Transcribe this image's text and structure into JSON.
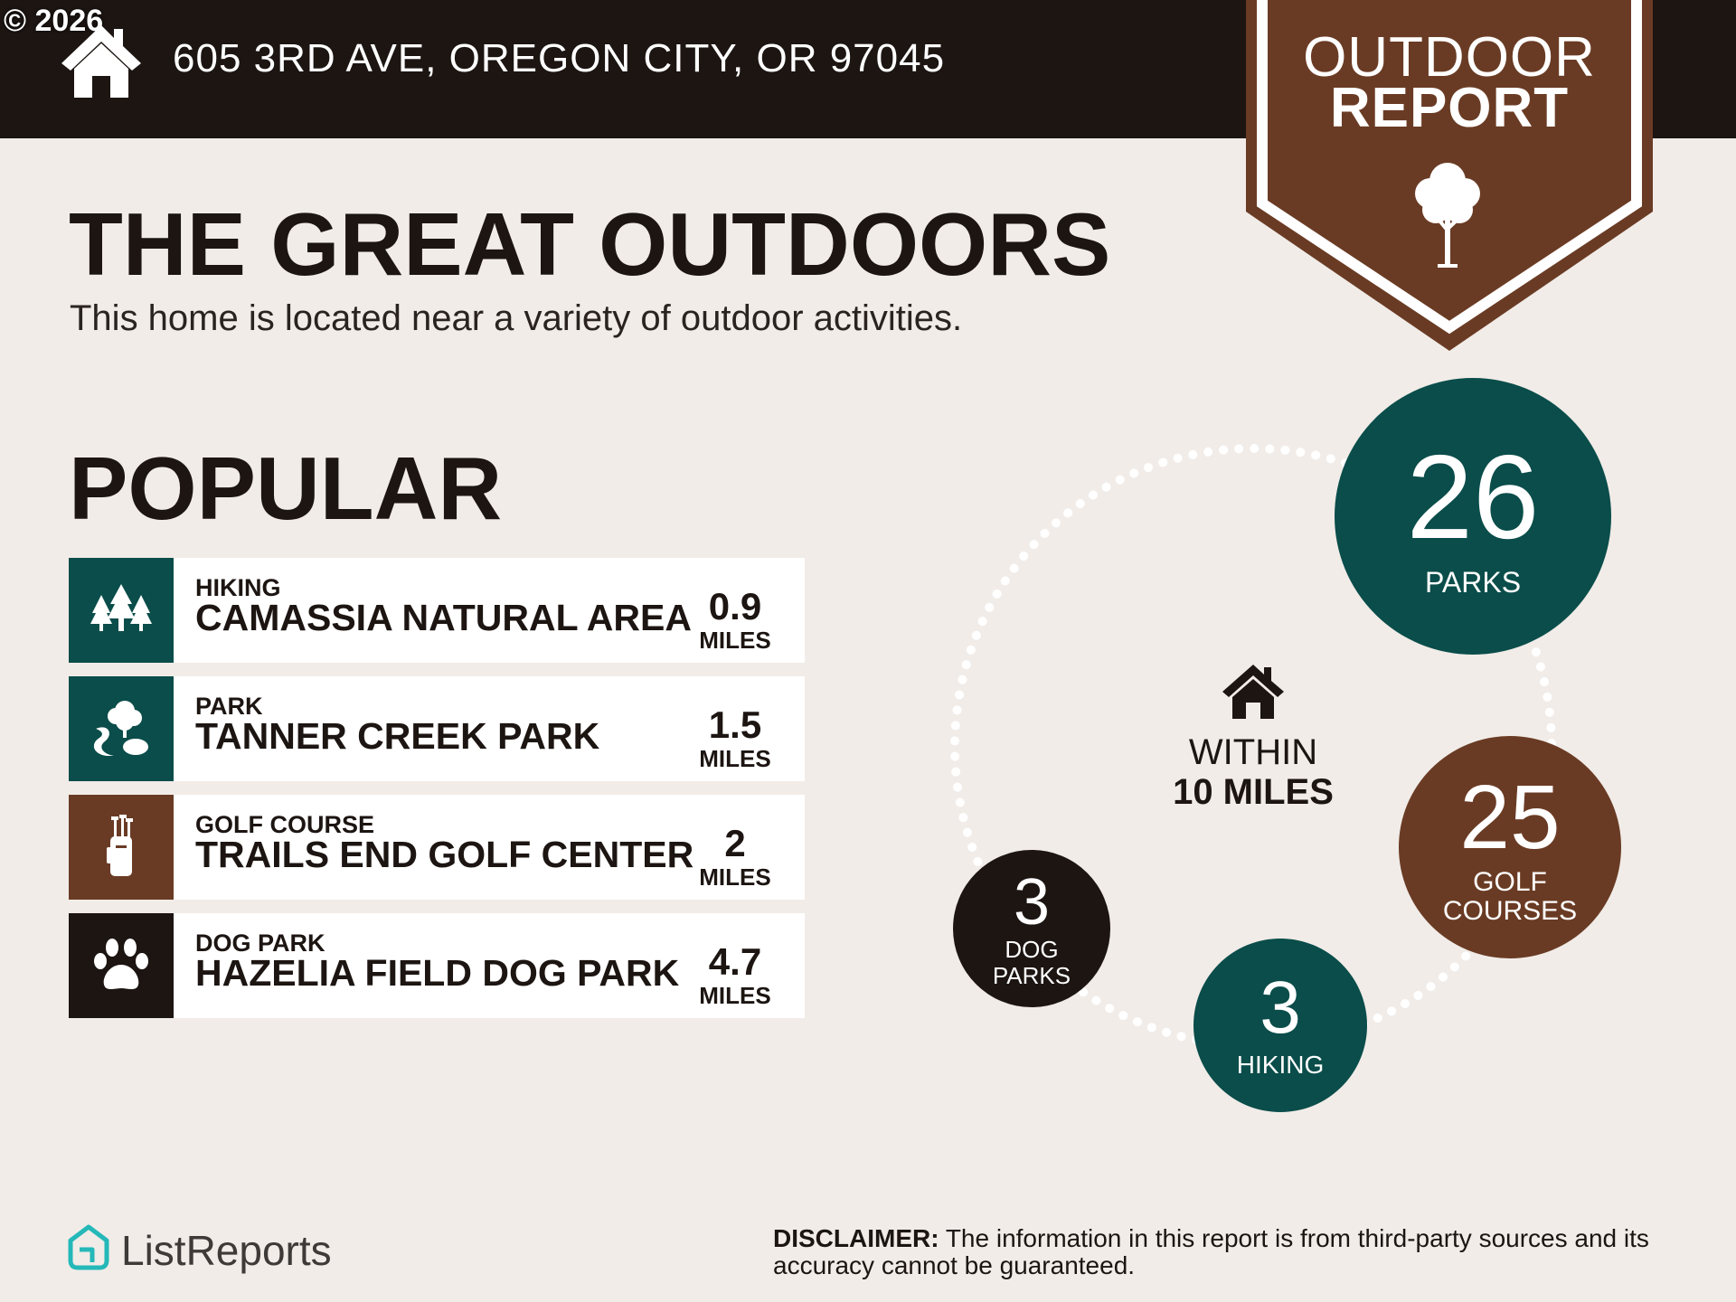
{
  "watermark": "© 2026",
  "header": {
    "address": "605 3RD AVE, OREGON CITY, OR 97045",
    "badge_line1": "OUTDOOR",
    "badge_line2": "REPORT"
  },
  "headline": "THE GREAT OUTDOORS",
  "subtitle": "This home is located near a variety of outdoor activities.",
  "popular": {
    "title": "POPULAR",
    "items": [
      {
        "category": "HIKING",
        "name": "CAMASSIA NATURAL AREA",
        "distance": "0.9",
        "unit": "MILES",
        "icon": "trees-icon",
        "color": "#0a4d4a"
      },
      {
        "category": "PARK",
        "name": "TANNER CREEK PARK",
        "distance": "1.5",
        "unit": "MILES",
        "icon": "park-icon",
        "color": "#0a4d4a"
      },
      {
        "category": "GOLF COURSE",
        "name": "TRAILS END GOLF CENTER",
        "distance": "2",
        "unit": "MILES",
        "icon": "golf-bag-icon",
        "color": "#6a3b24"
      },
      {
        "category": "DOG PARK",
        "name": "HAZELIA FIELD DOG PARK",
        "distance": "4.7",
        "unit": "MILES",
        "icon": "paw-icon",
        "color": "#1c1512"
      }
    ]
  },
  "summary": {
    "within_line1": "WITHIN",
    "within_line2": "10 MILES",
    "parks": {
      "count": "26",
      "label": "PARKS",
      "color": "#0a4d4a"
    },
    "golf": {
      "count": "25",
      "label_line1": "GOLF",
      "label_line2": "COURSES",
      "color": "#6a3b24"
    },
    "hiking": {
      "count": "3",
      "label": "HIKING",
      "color": "#0a4d4a"
    },
    "dog_parks": {
      "count": "3",
      "label_line1": "DOG",
      "label_line2": "PARKS",
      "color": "#1c1512"
    }
  },
  "footer": {
    "logo_text": "ListReports",
    "disclaimer_label": "DISCLAIMER:",
    "disclaimer_text": " The information in this report is from third-party sources and its accuracy cannot be guaranteed."
  },
  "colors": {
    "dark": "#1c1512",
    "teal": "#0a4d4a",
    "brown": "#6a3b24",
    "background": "#f1ece8",
    "logo_teal": "#25b8b8"
  }
}
